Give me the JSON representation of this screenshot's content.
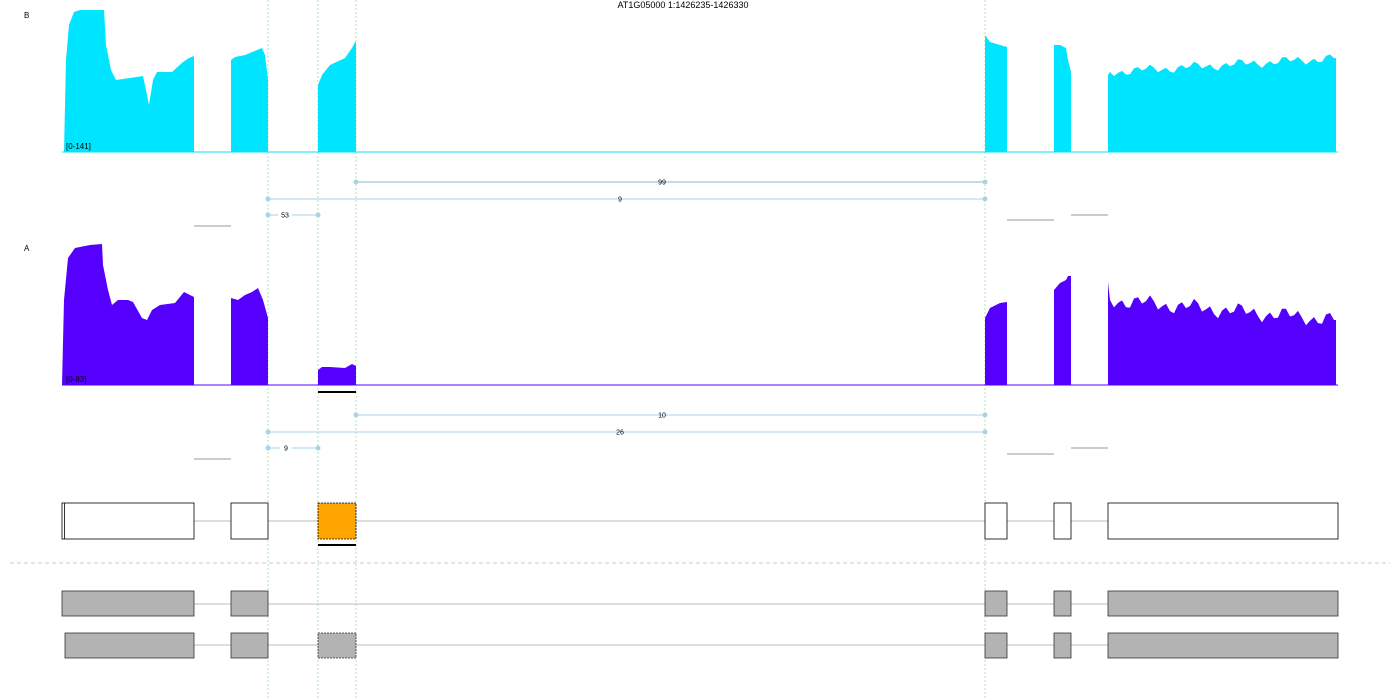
{
  "title": "AT1G05000 1:1426235-1426330",
  "colors": {
    "sample_b": "#00e5ff",
    "sample_a": "#5500ff",
    "highlight_exon": "#ffa500",
    "gray_exon": "#b3b3b3",
    "junction": "#a9d4e6",
    "guide": "#99dd99"
  },
  "tracks": [
    {
      "label": "B",
      "range": "[0-141]",
      "max": 141,
      "color": "#00e5ff",
      "junctions": [
        {
          "from": 1430,
          "to": 1520,
          "count": "99"
        },
        {
          "from": 1300,
          "to": 1520,
          "count": "9"
        },
        {
          "from": 1300,
          "to": 1380,
          "count": "53"
        }
      ]
    },
    {
      "label": "A",
      "range": "[0-83]",
      "max": 83,
      "color": "#5500ff",
      "junctions": [
        {
          "from": 1430,
          "to": 1520,
          "count": "10"
        },
        {
          "from": 1300,
          "to": 1520,
          "count": "26"
        },
        {
          "from": 1300,
          "to": 1380,
          "count": "9"
        }
      ]
    }
  ]
}
